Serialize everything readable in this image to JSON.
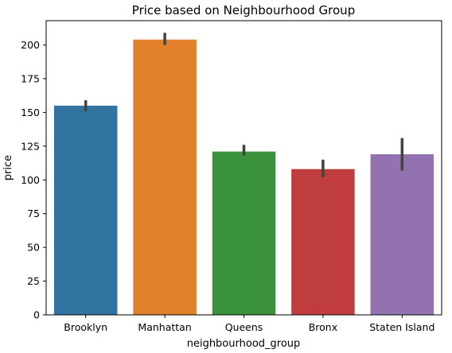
{
  "chart_data": {
    "type": "bar",
    "title": "Price based on Neighbourhood Group",
    "xlabel": "neighbourhood_group",
    "ylabel": "price",
    "categories": [
      "Brooklyn",
      "Manhattan",
      "Queens",
      "Bronx",
      "Staten Island"
    ],
    "values": [
      155,
      204,
      121,
      108,
      119
    ],
    "error_bars": [
      [
        151,
        159
      ],
      [
        200,
        209
      ],
      [
        118,
        126
      ],
      [
        102,
        115
      ],
      [
        107,
        131
      ]
    ],
    "colors": [
      "#3274a1",
      "#e1812c",
      "#3a923a",
      "#c03d3e",
      "#9372b2"
    ],
    "ylim": [
      0,
      218
    ],
    "yticks": [
      0,
      25,
      50,
      75,
      100,
      125,
      150,
      175,
      200
    ],
    "grid": false,
    "legend": "none"
  }
}
